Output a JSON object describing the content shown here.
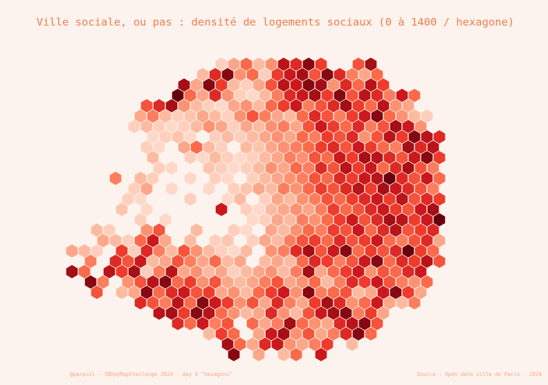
{
  "title": "Ville sociale, ou pas : densité de logements sociaux (0 à 1400 / hexagone)",
  "caption_left": "@parpoil - 30DayMapChallenge 2024 - day 4 \"hexagons\"",
  "caption_right": "Source : Open data ville de Paris - 2024",
  "color_scale": {
    "domain": [
      0,
      1400
    ],
    "colors": [
      "#fee3d6",
      "#fcbba1",
      "#fc9272",
      "#fb6a4a",
      "#ef3b2c",
      "#cb181d",
      "#a50f15",
      "#67000d"
    ]
  },
  "hexagons": [
    [
      null,
      100,
      300,
      600,
      200,
      400,
      1100,
      900,
      1300,
      800,
      null,
      null,
      700,
      1200
    ],
    [
      200,
      900,
      1300,
      400,
      600,
      100,
      800,
      1000,
      1200,
      700,
      1300,
      900,
      500,
      300,
      600,
      null
    ],
    [
      1200,
      300,
      1300,
      800,
      200,
      100,
      300,
      700,
      1100,
      1000,
      1300,
      1200,
      400,
      900,
      600,
      1100,
      800,
      null
    ],
    [
      1400,
      600,
      300,
      900,
      400,
      100,
      50,
      200,
      500,
      900,
      1000,
      1200,
      800,
      1300,
      700,
      1100,
      900,
      500,
      1000,
      600
    ],
    [
      700,
      900,
      1200,
      400,
      200,
      100,
      50,
      300,
      400,
      200,
      600,
      800,
      1000,
      500,
      700,
      900,
      1200,
      800,
      600,
      1100,
      400,
      300
    ],
    [
      300,
      500,
      200,
      100,
      150,
      300,
      200,
      100,
      400,
      700,
      500,
      300,
      200,
      600,
      900,
      700,
      500,
      800,
      1000,
      1300,
      600,
      400,
      200,
      100
    ],
    [
      100,
      200,
      100,
      50,
      100,
      200,
      400,
      300,
      100,
      300,
      200,
      400,
      500,
      300,
      700,
      1000,
      800,
      600,
      900,
      500,
      700,
      1200,
      1000,
      400
    ],
    [
      50,
      100,
      150,
      50,
      null,
      100,
      200,
      100,
      200,
      300,
      400,
      300,
      600,
      500,
      800,
      700,
      900,
      400,
      700,
      1100,
      800,
      1300,
      1100,
      900
    ],
    [
      100,
      50,
      null,
      300,
      600,
      200,
      100,
      null,
      200,
      150,
      300,
      400,
      500,
      600,
      800,
      900,
      700,
      1000,
      800,
      600,
      500,
      1200,
      900,
      1100
    ],
    [
      200,
      null,
      null,
      100,
      50,
      200,
      100,
      50,
      100,
      200,
      300,
      500,
      400,
      700,
      600,
      1000,
      800,
      1200,
      1100,
      900,
      700,
      1000,
      1300,
      800
    ],
    [
      null,
      null,
      100,
      50,
      null,
      null,
      150,
      100,
      50,
      100,
      200,
      400,
      300,
      600,
      500,
      900,
      700,
      1100,
      800,
      1000,
      600,
      900,
      1200,
      700,
      500
    ],
    [
      500,
      null,
      200,
      100,
      null,
      null,
      50,
      null,
      100,
      50,
      null,
      100,
      200,
      300,
      400,
      500,
      700,
      600,
      900,
      800,
      1000,
      1100,
      1400,
      900,
      700,
      1000,
      600
    ],
    [
      null,
      null,
      100,
      300,
      null,
      50,
      null,
      null,
      50,
      null,
      100,
      150,
      300,
      200,
      500,
      400,
      600,
      800,
      700,
      900,
      1100,
      800,
      1200,
      1000,
      900,
      700,
      500
    ],
    [
      null,
      100,
      50,
      null,
      null,
      null,
      100,
      null,
      null,
      50,
      200,
      null,
      100,
      300,
      200,
      400,
      500,
      700,
      600,
      800,
      900,
      1000,
      800,
      1100,
      700,
      900,
      800
    ],
    [
      null,
      null,
      150,
      null,
      50,
      null,
      null,
      null,
      null,
      null,
      1000,
      null,
      100,
      50,
      200,
      300,
      400,
      300,
      500,
      800,
      600,
      700,
      900,
      1000,
      800,
      700,
      1000,
      1200
    ],
    [
      null,
      null,
      null,
      100,
      null,
      50,
      null,
      null,
      null,
      null,
      null,
      null,
      50,
      100,
      300,
      200,
      500,
      400,
      600,
      800,
      1000,
      700,
      900,
      1200,
      1100,
      800,
      1000,
      1400
    ],
    [
      null,
      200,
      100,
      null,
      null,
      400,
      700,
      null,
      null,
      200,
      null,
      null,
      100,
      50,
      null,
      300,
      200,
      400,
      600,
      500,
      800,
      700,
      1000,
      600,
      900,
      1100,
      700,
      800,
      900
    ],
    [
      null,
      null,
      300,
      200,
      100,
      600,
      1000,
      300,
      null,
      200,
      null,
      100,
      150,
      null,
      100,
      300,
      200,
      500,
      700,
      800,
      600,
      900,
      700,
      800,
      1000,
      600,
      500,
      700,
      900,
      300
    ],
    [
      300,
      200,
      100,
      null,
      800,
      100,
      900,
      500,
      200,
      700,
      400,
      200,
      100,
      50,
      200,
      null,
      400,
      500,
      900,
      1200,
      700,
      1000,
      1300,
      600,
      800,
      700,
      900,
      1400,
      800,
      600
    ],
    [
      null,
      500,
      null,
      900,
      700,
      1000,
      200,
      300,
      700,
      500,
      300,
      600,
      200,
      300,
      null,
      200,
      300,
      200,
      600,
      900,
      800,
      500,
      700,
      1000,
      1300,
      600,
      900,
      800,
      1100,
      700
    ],
    [
      1200,
      600,
      null,
      1100,
      800,
      1200,
      100,
      500,
      1100,
      300,
      400,
      200,
      300,
      100,
      200,
      300,
      400,
      200,
      500,
      1200,
      300,
      600,
      800,
      1000,
      400,
      700,
      600,
      900,
      1000,
      null
    ],
    [
      1300,
      500,
      null,
      400,
      700,
      1100,
      1300,
      600,
      800,
      400,
      700,
      300,
      200,
      300,
      500,
      700,
      300,
      400,
      600,
      200,
      500,
      900,
      800,
      1000,
      700,
      500,
      400,
      600
    ],
    [
      700,
      null,
      200,
      300,
      1300,
      600,
      900,
      1000,
      700,
      800,
      300,
      400,
      200,
      600,
      800,
      1000,
      400,
      1300,
      500,
      600,
      700,
      200,
      300,
      1000,
      1300,
      800,
      300
    ],
    [
      900,
      700,
      500,
      1100,
      600,
      1300,
      1000,
      800,
      400,
      700,
      300,
      900,
      500,
      300,
      800,
      1200,
      900,
      400,
      600,
      1000,
      300,
      200,
      500
    ],
    [
      1100,
      1200,
      800,
      1300,
      1100,
      600,
      400,
      200,
      300,
      900,
      400,
      200,
      700,
      1000,
      1200,
      1300,
      500,
      800,
      300
    ],
    [
      900,
      600,
      1000,
      500,
      700,
      null,
      600,
      300,
      500,
      1200,
      600,
      400,
      300,
      900,
      1100,
      1300,
      700,
      null
    ],
    [
      null,
      200,
      800,
      600,
      null,
      300,
      1000,
      1200,
      400,
      700,
      300,
      500,
      900,
      1300,
      600
    ],
    [
      1200,
      600,
      300,
      900,
      1000,
      400,
      300,
      500,
      800,
      null,
      200
    ],
    [
      1300,
      null,
      300,
      null,
      200,
      600,
      null,
      1000,
      null
    ]
  ]
}
